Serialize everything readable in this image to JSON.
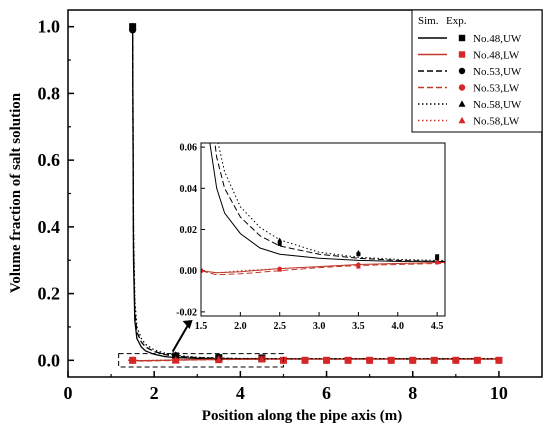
{
  "chart_data": {
    "type": "line",
    "xlabel": "Position along the pipe axis (m)",
    "ylabel": "Volume fraction of salt solution",
    "xlim": [
      0,
      11
    ],
    "ylim": [
      -0.05,
      1.05
    ],
    "x_ticks": [
      "0",
      "2",
      "4",
      "6",
      "8",
      "10"
    ],
    "y_ticks": [
      "0.0",
      "0.2",
      "0.4",
      "0.6",
      "0.8",
      "1.0"
    ],
    "legend": {
      "placement": "top-right",
      "header_sim": "Sim.",
      "header_exp": "Exp.",
      "entries": [
        {
          "name": "No.48,UW",
          "line_color": "#000000",
          "dash": "solid",
          "marker": "square",
          "marker_color": "#000000"
        },
        {
          "name": "No.48,LW",
          "line_color": "#c0392b",
          "dash": "solid",
          "marker": "square",
          "marker_color": "#d62728"
        },
        {
          "name": "No.53,UW",
          "line_color": "#000000",
          "dash": "dashed",
          "marker": "circle",
          "marker_color": "#000000"
        },
        {
          "name": "No.53,LW",
          "line_color": "#c0392b",
          "dash": "dashed",
          "marker": "circle",
          "marker_color": "#d62728"
        },
        {
          "name": "No.58,UW",
          "line_color": "#000000",
          "dash": "dotted",
          "marker": "triangle",
          "marker_color": "#000000"
        },
        {
          "name": "No.58,LW",
          "line_color": "#c0392b",
          "dash": "dotted",
          "marker": "triangle",
          "marker_color": "#d62728"
        }
      ]
    },
    "series": [
      {
        "name": "No.48,UW",
        "x": [
          1.5,
          1.52,
          1.55,
          1.6,
          1.7,
          1.8,
          2.0,
          2.25,
          2.5,
          3.0,
          3.5,
          4.0,
          4.5,
          5,
          6,
          7,
          8,
          9,
          10
        ],
        "y": [
          1.0,
          0.3,
          0.12,
          0.065,
          0.04,
          0.028,
          0.018,
          0.011,
          0.008,
          0.006,
          0.005,
          0.0045,
          0.0045,
          0.004,
          0.004,
          0.004,
          0.004,
          0.004,
          0.004
        ]
      },
      {
        "name": "No.48,LW",
        "x": [
          1.4,
          1.5,
          1.7,
          2.0,
          2.5,
          3.0,
          3.5,
          4.0,
          4.5,
          5,
          6,
          7,
          8,
          9,
          10
        ],
        "y": [
          0.0,
          0.0,
          -0.001,
          -0.0005,
          0.001,
          0.002,
          0.003,
          0.0035,
          0.004,
          0.004,
          0.004,
          0.004,
          0.004,
          0.004,
          0.004
        ]
      },
      {
        "name": "No.53,UW",
        "x": [
          1.5,
          1.52,
          1.55,
          1.6,
          1.7,
          1.8,
          2.0,
          2.25,
          2.5,
          3.0,
          3.5,
          4.0,
          4.5,
          5,
          6,
          7,
          8,
          9,
          10
        ],
        "y": [
          1.0,
          0.35,
          0.15,
          0.085,
          0.055,
          0.04,
          0.026,
          0.017,
          0.012,
          0.008,
          0.006,
          0.005,
          0.0045,
          0.0045,
          0.0045,
          0.0045,
          0.0045,
          0.0045,
          0.0045
        ]
      },
      {
        "name": "No.53,LW",
        "x": [
          1.4,
          1.5,
          1.7,
          2.0,
          2.5,
          3.0,
          3.5,
          4.0,
          4.5,
          5,
          6,
          7,
          8,
          9,
          10
        ],
        "y": [
          0.0,
          0.0,
          -0.002,
          -0.0015,
          0.0,
          0.0015,
          0.0025,
          0.003,
          0.0035,
          0.004,
          0.004,
          0.004,
          0.004,
          0.004,
          0.004
        ]
      },
      {
        "name": "No.58,UW",
        "x": [
          1.5,
          1.52,
          1.55,
          1.6,
          1.7,
          1.8,
          2.0,
          2.25,
          2.5,
          3.0,
          3.5,
          4.0,
          4.5,
          5,
          6,
          7,
          8,
          9,
          10
        ],
        "y": [
          1.0,
          0.4,
          0.18,
          0.1,
          0.065,
          0.048,
          0.031,
          0.021,
          0.015,
          0.009,
          0.0065,
          0.0055,
          0.005,
          0.005,
          0.005,
          0.005,
          0.005,
          0.005,
          0.005
        ]
      },
      {
        "name": "No.58,LW",
        "x": [
          1.4,
          1.5,
          1.7,
          2.0,
          2.5,
          3.0,
          3.5,
          4.0,
          4.5,
          5,
          6,
          7,
          8,
          9,
          10
        ],
        "y": [
          0.0,
          0.0,
          -0.001,
          0.0,
          0.001,
          0.002,
          0.003,
          0.0035,
          0.004,
          0.004,
          0.004,
          0.004,
          0.004,
          0.004,
          0.004
        ]
      }
    ],
    "experimental": [
      {
        "name": "No.48,UW",
        "x": [
          1.5,
          2.5,
          3.5,
          4.5
        ],
        "y": [
          1.0,
          0.013,
          0.008,
          0.007
        ]
      },
      {
        "name": "No.48,LW",
        "x": [
          1.5,
          2.5,
          3.5,
          4.5,
          5.0,
          5.5,
          6.0,
          6.5,
          7.0,
          7.5,
          8.0,
          8.5,
          9.0,
          9.5,
          10.0
        ],
        "y": [
          0.0,
          0.0005,
          0.002,
          0.004,
          0.0,
          0.0,
          0.0,
          0.0,
          0.0,
          0.0,
          0.0,
          0.0,
          0.0,
          0.0,
          0.0
        ]
      },
      {
        "name": "No.53,UW",
        "x": [
          1.5,
          2.5,
          3.5,
          4.5
        ],
        "y": [
          0.99,
          0.014,
          0.008,
          0.006
        ]
      },
      {
        "name": "No.53,LW",
        "x": [
          1.5,
          2.5,
          3.5,
          4.5,
          5.0,
          5.5,
          6.0,
          6.5,
          7.0,
          7.5,
          8.0,
          8.5,
          9.0,
          9.5,
          10.0
        ],
        "y": [
          0.0,
          0.001,
          0.003,
          0.004,
          0.0,
          0.0,
          0.0,
          0.0,
          0.0,
          0.0,
          0.0,
          0.0,
          0.0,
          0.0,
          0.0
        ]
      },
      {
        "name": "No.58,UW",
        "x": [
          1.5,
          2.5,
          3.5,
          4.5
        ],
        "y": [
          1.0,
          0.015,
          0.009,
          0.006
        ]
      },
      {
        "name": "No.58,LW",
        "x": [
          1.5,
          2.5,
          3.5,
          4.5
        ],
        "y": [
          0.0,
          0.001,
          0.003,
          0.004
        ]
      }
    ],
    "inset": {
      "xlim": [
        1.5,
        4.6
      ],
      "ylim": [
        -0.022,
        0.062
      ],
      "x_ticks": [
        "1.5",
        "2.0",
        "2.5",
        "3.0",
        "3.5",
        "4.0",
        "4.5"
      ],
      "y_ticks": [
        "-0.02",
        "0.00",
        "0.02",
        "0.04",
        "0.06"
      ],
      "zoom_region": {
        "x": [
          1.5,
          5.0
        ],
        "y": [
          -0.02,
          0.02
        ]
      }
    }
  }
}
